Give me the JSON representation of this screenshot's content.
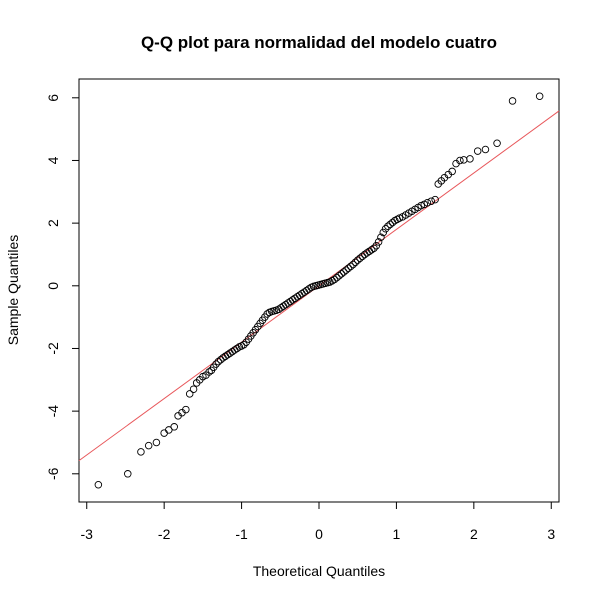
{
  "chart_data": {
    "type": "scatter",
    "title": "Q-Q plot para normalidad del modelo cuatro",
    "xlabel": "Theoretical Quantiles",
    "ylabel": "Sample Quantiles",
    "xlim": [
      -3.1,
      3.1
    ],
    "ylim": [
      -6.9,
      6.6
    ],
    "x_ticks": [
      -3,
      -2,
      -1,
      0,
      1,
      2,
      3
    ],
    "y_ticks": [
      -6,
      -4,
      -2,
      0,
      2,
      4,
      6
    ],
    "grid": false,
    "legend": "none",
    "reference_line": {
      "slope": 1.8,
      "intercept": 0.0,
      "color": "#e8575b"
    },
    "point_color": "#000000",
    "points": [
      [
        -2.85,
        -6.35
      ],
      [
        -2.47,
        -6.0
      ],
      [
        -2.3,
        -5.3
      ],
      [
        -2.2,
        -5.1
      ],
      [
        -2.1,
        -5.0
      ],
      [
        -2.0,
        -4.7
      ],
      [
        -1.94,
        -4.6
      ],
      [
        -1.87,
        -4.5
      ],
      [
        -1.82,
        -4.15
      ],
      [
        -1.77,
        -4.05
      ],
      [
        -1.72,
        -3.95
      ],
      [
        -1.67,
        -3.45
      ],
      [
        -1.62,
        -3.3
      ],
      [
        -1.58,
        -3.1
      ],
      [
        -1.54,
        -3.0
      ],
      [
        -1.5,
        -2.9
      ],
      [
        -1.46,
        -2.85
      ],
      [
        -1.42,
        -2.75
      ],
      [
        -1.39,
        -2.7
      ],
      [
        -1.36,
        -2.6
      ],
      [
        -1.33,
        -2.5
      ],
      [
        -1.3,
        -2.42
      ],
      [
        -1.27,
        -2.36
      ],
      [
        -1.24,
        -2.3
      ],
      [
        -1.21,
        -2.25
      ],
      [
        -1.18,
        -2.2
      ],
      [
        -1.15,
        -2.15
      ],
      [
        -1.12,
        -2.1
      ],
      [
        -1.09,
        -2.05
      ],
      [
        -1.06,
        -2.0
      ],
      [
        -1.03,
        -1.95
      ],
      [
        -1.0,
        -1.92
      ],
      [
        -0.97,
        -1.88
      ],
      [
        -0.94,
        -1.8
      ],
      [
        -0.91,
        -1.7
      ],
      [
        -0.88,
        -1.6
      ],
      [
        -0.85,
        -1.5
      ],
      [
        -0.82,
        -1.4
      ],
      [
        -0.79,
        -1.3
      ],
      [
        -0.76,
        -1.2
      ],
      [
        -0.73,
        -1.1
      ],
      [
        -0.7,
        -1.0
      ],
      [
        -0.67,
        -0.9
      ],
      [
        -0.64,
        -0.85
      ],
      [
        -0.61,
        -0.82
      ],
      [
        -0.58,
        -0.8
      ],
      [
        -0.55,
        -0.78
      ],
      [
        -0.52,
        -0.75
      ],
      [
        -0.49,
        -0.7
      ],
      [
        -0.46,
        -0.65
      ],
      [
        -0.43,
        -0.6
      ],
      [
        -0.4,
        -0.55
      ],
      [
        -0.37,
        -0.5
      ],
      [
        -0.34,
        -0.45
      ],
      [
        -0.31,
        -0.4
      ],
      [
        -0.28,
        -0.35
      ],
      [
        -0.25,
        -0.3
      ],
      [
        -0.22,
        -0.25
      ],
      [
        -0.19,
        -0.2
      ],
      [
        -0.16,
        -0.15
      ],
      [
        -0.13,
        -0.1
      ],
      [
        -0.1,
        -0.05
      ],
      [
        -0.07,
        -0.02
      ],
      [
        -0.04,
        0.0
      ],
      [
        -0.01,
        0.02
      ],
      [
        0.02,
        0.04
      ],
      [
        0.05,
        0.06
      ],
      [
        0.08,
        0.08
      ],
      [
        0.11,
        0.1
      ],
      [
        0.14,
        0.12
      ],
      [
        0.17,
        0.16
      ],
      [
        0.2,
        0.2
      ],
      [
        0.23,
        0.26
      ],
      [
        0.26,
        0.32
      ],
      [
        0.29,
        0.38
      ],
      [
        0.32,
        0.44
      ],
      [
        0.35,
        0.5
      ],
      [
        0.38,
        0.56
      ],
      [
        0.41,
        0.62
      ],
      [
        0.44,
        0.68
      ],
      [
        0.47,
        0.75
      ],
      [
        0.5,
        0.82
      ],
      [
        0.53,
        0.88
      ],
      [
        0.56,
        0.94
      ],
      [
        0.59,
        1.0
      ],
      [
        0.62,
        1.05
      ],
      [
        0.65,
        1.1
      ],
      [
        0.68,
        1.15
      ],
      [
        0.71,
        1.2
      ],
      [
        0.74,
        1.28
      ],
      [
        0.77,
        1.4
      ],
      [
        0.8,
        1.55
      ],
      [
        0.83,
        1.7
      ],
      [
        0.86,
        1.82
      ],
      [
        0.89,
        1.9
      ],
      [
        0.92,
        1.96
      ],
      [
        0.95,
        2.02
      ],
      [
        0.98,
        2.08
      ],
      [
        1.01,
        2.12
      ],
      [
        1.04,
        2.16
      ],
      [
        1.08,
        2.2
      ],
      [
        1.12,
        2.26
      ],
      [
        1.16,
        2.32
      ],
      [
        1.2,
        2.38
      ],
      [
        1.24,
        2.44
      ],
      [
        1.28,
        2.5
      ],
      [
        1.32,
        2.56
      ],
      [
        1.36,
        2.6
      ],
      [
        1.4,
        2.65
      ],
      [
        1.45,
        2.7
      ],
      [
        1.5,
        2.75
      ],
      [
        1.54,
        3.25
      ],
      [
        1.58,
        3.35
      ],
      [
        1.62,
        3.45
      ],
      [
        1.67,
        3.55
      ],
      [
        1.72,
        3.65
      ],
      [
        1.77,
        3.9
      ],
      [
        1.82,
        4.0
      ],
      [
        1.87,
        4.02
      ],
      [
        1.95,
        4.05
      ],
      [
        2.05,
        4.3
      ],
      [
        2.15,
        4.35
      ],
      [
        2.3,
        4.55
      ],
      [
        2.5,
        5.9
      ],
      [
        2.85,
        6.05
      ]
    ]
  }
}
